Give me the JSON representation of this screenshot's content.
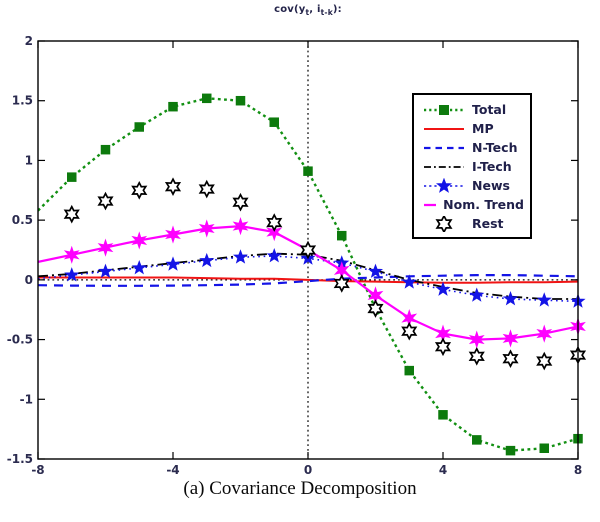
{
  "title": {
    "prefix": "cov(y",
    "sub1": "t",
    "middle": ", i",
    "sub2": "t-k",
    "suffix": "):"
  },
  "caption": "(a) Covariance Decomposition",
  "axes": {
    "x_ticks": [
      -8,
      -4,
      0,
      4,
      8
    ],
    "y_ticks": [
      2,
      1.5,
      1,
      0.5,
      0,
      -0.5,
      -1,
      -1.5
    ],
    "x_range": [
      -8,
      8
    ],
    "y_range": [
      -1.5,
      2
    ],
    "zero_reference_lines": true,
    "grid": false
  },
  "colors": {
    "total_green": "#129012",
    "total_marker_green": "#0d7a0d",
    "mp_red": "#f01414",
    "ntech_blue": "#1414e6",
    "itech_black": "#000000",
    "news_blue": "#1414e6",
    "nomtrend_magenta": "#ff00ff",
    "rest_black": "#000000",
    "axis_black": "#000000",
    "text_navy": "#2b2b4f"
  },
  "chart_data": {
    "type": "line",
    "title": "cov(y_t, i_t-k):",
    "xlabel": "",
    "ylabel": "",
    "xlim": [
      -8,
      8
    ],
    "ylim": [
      -1.5,
      2
    ],
    "legend_position": "upper right",
    "x": [
      -8,
      -7,
      -6,
      -5,
      -4,
      -3,
      -2,
      -1,
      0,
      1,
      2,
      3,
      4,
      5,
      6,
      7,
      8
    ],
    "series": [
      {
        "name": "Total",
        "color": "#129012",
        "marker_color": "#0d7a0d",
        "line": "dotted",
        "dash": "2.8 3.4",
        "width": 2.4,
        "marker": "square",
        "marker_size": 8.5,
        "values": [
          0.58,
          0.86,
          1.09,
          1.28,
          1.45,
          1.52,
          1.5,
          1.32,
          0.91,
          0.37,
          -0.24,
          -0.76,
          -1.13,
          -1.34,
          -1.43,
          -1.41,
          -1.33
        ]
      },
      {
        "name": "MP",
        "color": "#f01414",
        "marker_color": "#f01414",
        "line": "solid",
        "dash": "",
        "width": 2.0,
        "marker": "none",
        "marker_size": 0,
        "values": [
          0.02,
          0.02,
          0.02,
          0.02,
          0.02,
          0.015,
          0.01,
          0.01,
          0.0,
          -0.01,
          -0.015,
          -0.02,
          -0.025,
          -0.025,
          -0.02,
          -0.02,
          -0.015
        ]
      },
      {
        "name": "N-Tech",
        "color": "#1414e6",
        "marker_color": "#1414e6",
        "line": "dashed",
        "dash": "9 7",
        "width": 2.2,
        "marker": "none",
        "marker_size": 0,
        "values": [
          -0.045,
          -0.048,
          -0.05,
          -0.05,
          -0.048,
          -0.045,
          -0.04,
          -0.03,
          -0.01,
          0.01,
          0.02,
          0.03,
          0.035,
          0.04,
          0.04,
          0.035,
          0.03
        ]
      },
      {
        "name": "I-Tech",
        "color": "#000000",
        "marker_color": "#000000",
        "line": "dashdot",
        "dash": "10 4 2 4",
        "width": 1.8,
        "marker": "none",
        "marker_size": 0,
        "values": [
          0.03,
          0.05,
          0.08,
          0.11,
          0.14,
          0.17,
          0.2,
          0.22,
          0.21,
          0.16,
          0.08,
          0.0,
          -0.06,
          -0.11,
          -0.14,
          -0.16,
          -0.16
        ]
      },
      {
        "name": "News",
        "color": "#1414e6",
        "marker_color": "#1414e6",
        "line": "dotted",
        "dash": "1.6 3.8",
        "width": 1.6,
        "marker": "star5",
        "marker_size": 6.5,
        "values": [
          0.01,
          0.04,
          0.07,
          0.1,
          0.13,
          0.16,
          0.19,
          0.2,
          0.18,
          0.14,
          0.07,
          -0.02,
          -0.08,
          -0.13,
          -0.16,
          -0.17,
          -0.18
        ]
      },
      {
        "name": "Nom. Trend",
        "color": "#ff00ff",
        "marker_color": "#ff00ff",
        "line": "solid",
        "dash": "",
        "width": 2.2,
        "marker": "star6",
        "marker_size": 7.5,
        "values": [
          0.15,
          0.21,
          0.27,
          0.33,
          0.38,
          0.43,
          0.45,
          0.4,
          0.25,
          0.08,
          -0.13,
          -0.32,
          -0.45,
          -0.5,
          -0.49,
          -0.45,
          -0.39
        ]
      },
      {
        "name": "Rest",
        "color": "#000000",
        "marker_color": "#ffffff",
        "line": "none",
        "dash": "",
        "width": 1.7,
        "marker": "hexagram",
        "marker_size": 7.5,
        "values": [
          null,
          0.55,
          0.66,
          0.75,
          0.78,
          0.76,
          0.65,
          0.48,
          0.25,
          -0.03,
          -0.24,
          -0.43,
          -0.56,
          -0.64,
          -0.66,
          -0.68,
          -0.63
        ]
      }
    ]
  }
}
